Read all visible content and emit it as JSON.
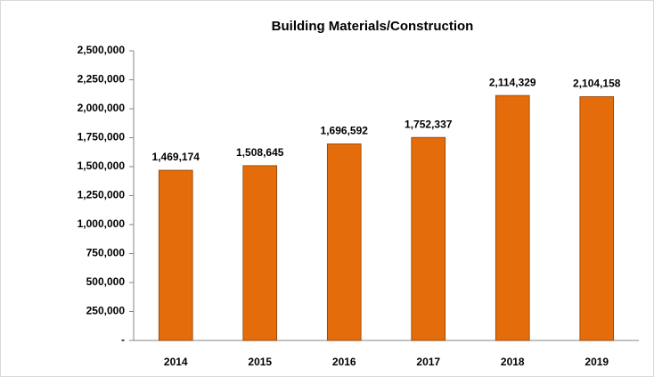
{
  "chart_data": {
    "type": "bar",
    "title": "Building Materials/Construction",
    "categories": [
      "2014",
      "2015",
      "2016",
      "2017",
      "2018",
      "2019"
    ],
    "values": [
      1469174,
      1508645,
      1696592,
      1752337,
      2114329,
      2104158
    ],
    "value_labels": [
      "1,469,174",
      "1,508,645",
      "1,696,592",
      "1,752,337",
      "2,114,329",
      "2,104,158"
    ],
    "color": "#e46c0a",
    "ylim": [
      0,
      2500000
    ],
    "yticks": [
      {
        "value": 0,
        "label": "-"
      },
      {
        "value": 250000,
        "label": "250,000"
      },
      {
        "value": 500000,
        "label": "500,000"
      },
      {
        "value": 750000,
        "label": "750,000"
      },
      {
        "value": 1000000,
        "label": "1,000,000"
      },
      {
        "value": 1250000,
        "label": "1,250,000"
      },
      {
        "value": 1500000,
        "label": "1,500,000"
      },
      {
        "value": 1750000,
        "label": "1,750,000"
      },
      {
        "value": 2000000,
        "label": "2,000,000"
      },
      {
        "value": 2250000,
        "label": "2,250,000"
      },
      {
        "value": 2500000,
        "label": "2,500,000"
      }
    ],
    "grid": false
  }
}
